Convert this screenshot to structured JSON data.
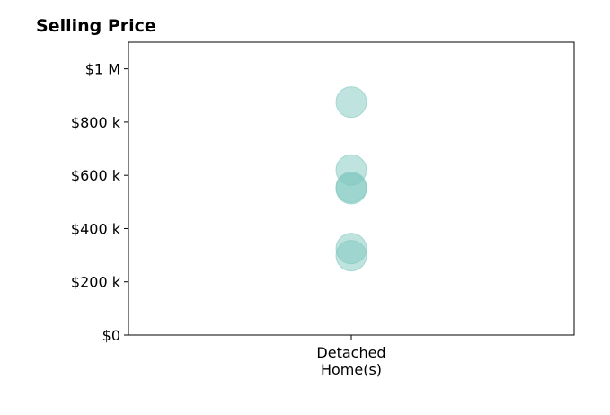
{
  "chart_data": {
    "type": "scatter",
    "title": "Selling Price",
    "xlabel": "",
    "ylabel": "",
    "categories": [
      "Detached\nHome(s)"
    ],
    "ylim": [
      0,
      1100000
    ],
    "yticks": [
      0,
      200000,
      400000,
      600000,
      800000,
      1000000
    ],
    "ytick_labels": [
      "$0",
      "$200 k",
      "$400 k",
      "$600 k",
      "$800 k",
      "$1 M"
    ],
    "grid": false,
    "legend": "none",
    "marker_color": "#7fc8c0",
    "points": [
      {
        "x": "Detached\nHome(s)",
        "y": 875000
      },
      {
        "x": "Detached\nHome(s)",
        "y": 620000
      },
      {
        "x": "Detached\nHome(s)",
        "y": 555000
      },
      {
        "x": "Detached\nHome(s)",
        "y": 550000
      },
      {
        "x": "Detached\nHome(s)",
        "y": 325000
      },
      {
        "x": "Detached\nHome(s)",
        "y": 298000
      }
    ]
  }
}
